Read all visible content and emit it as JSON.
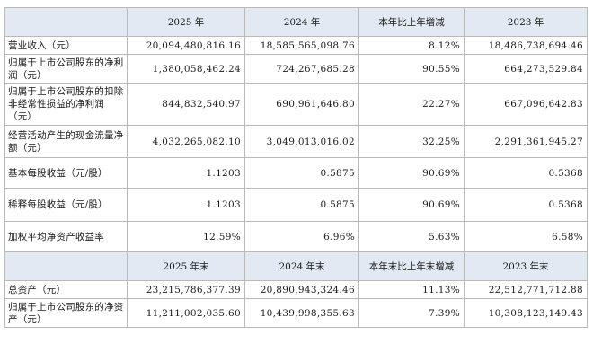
{
  "table": {
    "header1": {
      "corner": "",
      "cols": [
        "2025 年",
        "2024 年",
        "本年比上年增减",
        "2023 年"
      ]
    },
    "rows1": [
      {
        "label": "营业收入（元）",
        "values": [
          "20,094,480,816.16",
          "18,585,565,098.76",
          "8.12%",
          "18,486,738,694.46"
        ]
      },
      {
        "label": "归属于上市公司股东的净利润（元）",
        "values": [
          "1,380,058,462.24",
          "724,267,685.28",
          "90.55%",
          "664,273,529.84"
        ]
      },
      {
        "label": "归属于上市公司股东的扣除非经常性损益的净利润（元）",
        "values": [
          "844,832,540.97",
          "690,961,646.80",
          "22.27%",
          "667,096,642.83"
        ]
      },
      {
        "label": "经营活动产生的现金流量净额（元）",
        "values": [
          "4,032,265,082.10",
          "3,049,013,016.02",
          "32.25%",
          "2,291,361,945.27"
        ]
      },
      {
        "label": "基本每股收益（元/股）",
        "values": [
          "1.1203",
          "0.5875",
          "90.69%",
          "0.5368"
        ]
      },
      {
        "label": "稀释每股收益（元/股）",
        "values": [
          "1.1203",
          "0.5875",
          "90.69%",
          "0.5368"
        ]
      },
      {
        "label": "加权平均净资产收益率",
        "values": [
          "12.59%",
          "6.96%",
          "5.63%",
          "6.58%"
        ]
      }
    ],
    "header2": {
      "corner": "",
      "cols": [
        "2025 年末",
        "2024 年末",
        "本年末比上年末增减",
        "2023 年末"
      ]
    },
    "rows2": [
      {
        "label": "总资产（元）",
        "values": [
          "23,215,786,377.39",
          "20,890,943,324.46",
          "11.13%",
          "22,512,771,712.88"
        ]
      },
      {
        "label": "归属于上市公司股东的净资产（元）",
        "values": [
          "11,211,002,035.60",
          "10,439,998,355.63",
          "7.39%",
          "10,308,123,149.43"
        ]
      }
    ]
  }
}
